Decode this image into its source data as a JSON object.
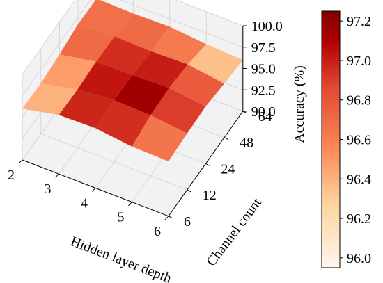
{
  "chart_data": {
    "type": "surface3d",
    "title": "",
    "xlabel": "Hidden layer depth",
    "ylabel": "Channel count",
    "zlabel": "Accuracy (%)",
    "x_ticks": [
      "2",
      "3",
      "4",
      "5",
      "6"
    ],
    "y_ticks": [
      "6",
      "12",
      "24",
      "48",
      "64"
    ],
    "z_ticks": [
      "90.0",
      "92.5",
      "95.0",
      "97.5",
      "100.0"
    ],
    "zlim": [
      90.0,
      100.0
    ],
    "colorbar": {
      "range": [
        95.95,
        97.25
      ],
      "ticks": [
        "96.0",
        "96.2",
        "96.4",
        "96.6",
        "96.8",
        "97.0",
        "97.2"
      ],
      "colormap": "OrRd"
    },
    "grid": true,
    "surface": [
      [
        96.0,
        95.9,
        96.2,
        96.7,
        96.6
      ],
      [
        96.9,
        96.8,
        97.0,
        96.9,
        96.5
      ],
      [
        97.0,
        97.2,
        97.1,
        96.8,
        96.6
      ],
      [
        96.5,
        97.1,
        97.2,
        96.9,
        96.2
      ],
      [
        96.4,
        96.6,
        96.7,
        96.3,
        96.0
      ]
    ]
  }
}
